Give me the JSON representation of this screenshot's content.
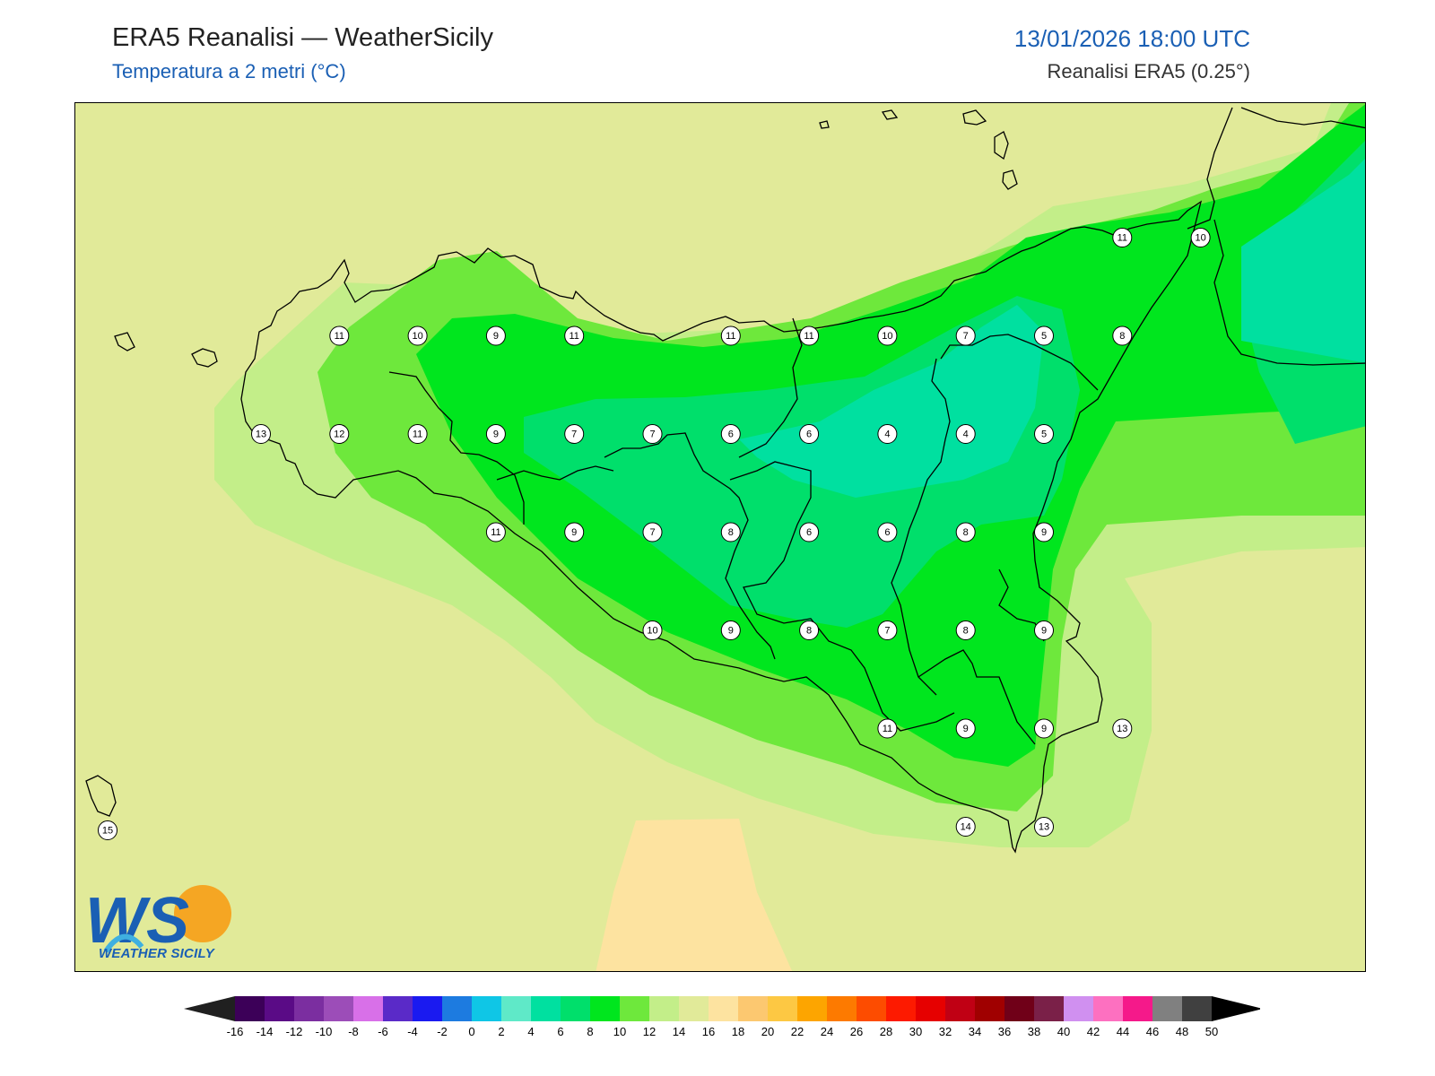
{
  "header": {
    "title": "ERA5 Reanalisi — WeatherSicily",
    "subtitle": "Temperatura a 2 metri (°C)",
    "datetime": "13/01/2026 18:00 UTC",
    "source": "Reanalisi ERA5 (0.25°)"
  },
  "logo": {
    "letters": "WS",
    "caption": "WEATHER SICILY"
  },
  "stations": [
    {
      "row": 1,
      "col": 1,
      "value": "11"
    },
    {
      "row": 1,
      "col": 2,
      "value": "10"
    },
    {
      "row": 1,
      "col": 3,
      "value": "9"
    },
    {
      "row": 1,
      "col": 4,
      "value": "11"
    },
    {
      "row": 1,
      "col": 6,
      "value": "11"
    },
    {
      "row": 1,
      "col": 7,
      "value": "11"
    },
    {
      "row": 1,
      "col": 8,
      "value": "10"
    },
    {
      "row": 1,
      "col": 9,
      "value": "7"
    },
    {
      "row": 1,
      "col": 10,
      "value": "5"
    },
    {
      "row": 1,
      "col": 11,
      "value": "8"
    },
    {
      "row": 2,
      "col": 0,
      "value": "13"
    },
    {
      "row": 2,
      "col": 1,
      "value": "12"
    },
    {
      "row": 2,
      "col": 2,
      "value": "11"
    },
    {
      "row": 2,
      "col": 3,
      "value": "9"
    },
    {
      "row": 2,
      "col": 4,
      "value": "7"
    },
    {
      "row": 2,
      "col": 5,
      "value": "7"
    },
    {
      "row": 2,
      "col": 6,
      "value": "6"
    },
    {
      "row": 2,
      "col": 7,
      "value": "6"
    },
    {
      "row": 2,
      "col": 8,
      "value": "4"
    },
    {
      "row": 2,
      "col": 9,
      "value": "4"
    },
    {
      "row": 2,
      "col": 10,
      "value": "5"
    },
    {
      "row": 3,
      "col": 3,
      "value": "11"
    },
    {
      "row": 3,
      "col": 4,
      "value": "9"
    },
    {
      "row": 3,
      "col": 5,
      "value": "7"
    },
    {
      "row": 3,
      "col": 6,
      "value": "8"
    },
    {
      "row": 3,
      "col": 7,
      "value": "6"
    },
    {
      "row": 3,
      "col": 8,
      "value": "6"
    },
    {
      "row": 3,
      "col": 9,
      "value": "8"
    },
    {
      "row": 3,
      "col": 10,
      "value": "9"
    },
    {
      "row": 4,
      "col": 5,
      "value": "10"
    },
    {
      "row": 4,
      "col": 6,
      "value": "9"
    },
    {
      "row": 4,
      "col": 7,
      "value": "8"
    },
    {
      "row": 4,
      "col": 8,
      "value": "7"
    },
    {
      "row": 4,
      "col": 9,
      "value": "8"
    },
    {
      "row": 4,
      "col": 10,
      "value": "9"
    },
    {
      "row": 5,
      "col": 8,
      "value": "11"
    },
    {
      "row": 5,
      "col": 9,
      "value": "9"
    },
    {
      "row": 5,
      "col": 10,
      "value": "9"
    },
    {
      "row": 5,
      "col": 11,
      "value": "13"
    },
    {
      "row": 6,
      "col": 9,
      "value": "14"
    },
    {
      "row": 6,
      "col": 10,
      "value": "13"
    },
    {
      "row": 0,
      "col": 11,
      "value": "11"
    },
    {
      "row": 0,
      "col": 12,
      "value": "10"
    },
    {
      "row": 6,
      "col": -3,
      "value": "15"
    }
  ],
  "colorbar": {
    "labels": [
      "-16",
      "-14",
      "-12",
      "-10",
      "-8",
      "-6",
      "-4",
      "-2",
      "0",
      "2",
      "4",
      "6",
      "8",
      "10",
      "12",
      "14",
      "16",
      "18",
      "20",
      "22",
      "24",
      "26",
      "28",
      "30",
      "32",
      "34",
      "36",
      "38",
      "40",
      "42",
      "44",
      "46",
      "48",
      "50"
    ],
    "colors": [
      "#3c0058",
      "#5a0b86",
      "#7b2ea0",
      "#9c4db8",
      "#d870e8",
      "#5a2ac8",
      "#1a1af0",
      "#1d7be0",
      "#0fc6e6",
      "#5fe9c8",
      "#00e0a0",
      "#00df6b",
      "#00e61e",
      "#6ee83c",
      "#c3ee89",
      "#e1ea99",
      "#fde3a0",
      "#fcc870",
      "#fdc843",
      "#fda500",
      "#fd7a00",
      "#fd4c00",
      "#fd1a00",
      "#e60000",
      "#c00014",
      "#a00000",
      "#700018",
      "#7a2048",
      "#d090f0",
      "#fd70c0",
      "#f5198a",
      "#808080",
      "#404040"
    ],
    "under_color": "#202020",
    "over_color": "#000000"
  },
  "palette": {
    "sea": "#e1ea99",
    "t16_18": "#fde3a0",
    "t12_14": "#c3ee89",
    "t10_12": "#6ee83c",
    "t8_10": "#00e61e",
    "t6_8": "#00df6b",
    "t4_6": "#00e0a0"
  }
}
